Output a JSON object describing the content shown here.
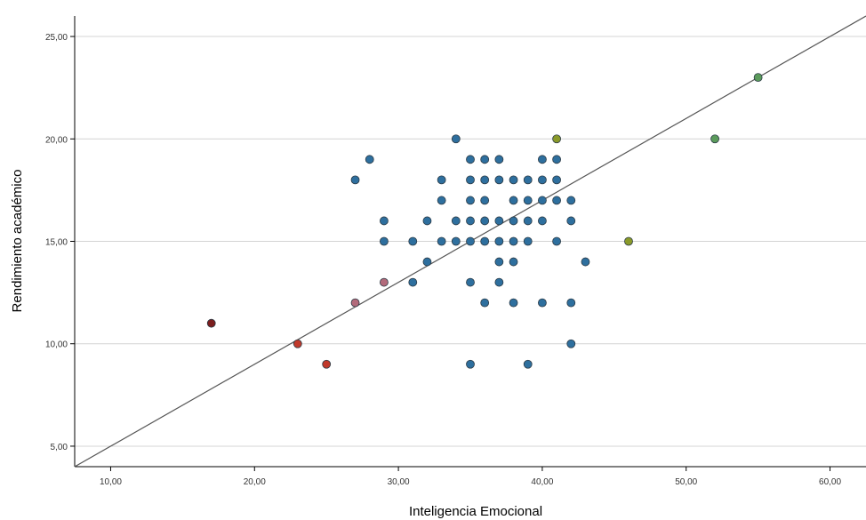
{
  "chart_data": {
    "type": "scatter",
    "title": "",
    "xlabel": "Inteligencia Emocional",
    "ylabel": "Rendimiento académico",
    "xlim": [
      7.5,
      62.5
    ],
    "ylim": [
      4,
      26
    ],
    "x_ticks": [
      10,
      20,
      30,
      40,
      50,
      60
    ],
    "x_tick_labels": [
      "10,00",
      "20,00",
      "30,00",
      "40,00",
      "50,00",
      "60,00"
    ],
    "y_ticks": [
      5,
      10,
      15,
      20,
      25
    ],
    "y_tick_labels": [
      "5,00",
      "10,00",
      "15,00",
      "20,00",
      "25,00"
    ],
    "grid": "horizontal",
    "reference_line": {
      "type": "identity",
      "label": "",
      "from": [
        7.5,
        4
      ],
      "to": [
        62.5,
        26
      ]
    },
    "colors": {
      "default": "#2e6f9e",
      "red": "#c0392b",
      "dark_red": "#7b1e1e",
      "pink": "#b26a7a",
      "green": "#5b9b5b",
      "olive": "#8a9a2a"
    },
    "points": [
      {
        "x": 17,
        "y": 11,
        "color": "dark_red"
      },
      {
        "x": 23,
        "y": 10,
        "color": "red"
      },
      {
        "x": 25,
        "y": 9,
        "color": "red"
      },
      {
        "x": 27,
        "y": 12,
        "color": "pink"
      },
      {
        "x": 29,
        "y": 13,
        "color": "pink"
      },
      {
        "x": 27,
        "y": 18
      },
      {
        "x": 28,
        "y": 19
      },
      {
        "x": 29,
        "y": 16
      },
      {
        "x": 29,
        "y": 15
      },
      {
        "x": 31,
        "y": 15
      },
      {
        "x": 31,
        "y": 13
      },
      {
        "x": 32,
        "y": 16
      },
      {
        "x": 32,
        "y": 14
      },
      {
        "x": 33,
        "y": 18
      },
      {
        "x": 33,
        "y": 17
      },
      {
        "x": 33,
        "y": 15
      },
      {
        "x": 34,
        "y": 20
      },
      {
        "x": 34,
        "y": 16
      },
      {
        "x": 34,
        "y": 15
      },
      {
        "x": 35,
        "y": 19
      },
      {
        "x": 35,
        "y": 18
      },
      {
        "x": 35,
        "y": 17
      },
      {
        "x": 35,
        "y": 16
      },
      {
        "x": 35,
        "y": 15
      },
      {
        "x": 35,
        "y": 13
      },
      {
        "x": 35,
        "y": 9
      },
      {
        "x": 36,
        "y": 19
      },
      {
        "x": 36,
        "y": 18
      },
      {
        "x": 36,
        "y": 17
      },
      {
        "x": 36,
        "y": 16
      },
      {
        "x": 36,
        "y": 15
      },
      {
        "x": 36,
        "y": 12
      },
      {
        "x": 37,
        "y": 19
      },
      {
        "x": 37,
        "y": 18
      },
      {
        "x": 37,
        "y": 16
      },
      {
        "x": 37,
        "y": 15
      },
      {
        "x": 37,
        "y": 14
      },
      {
        "x": 37,
        "y": 13
      },
      {
        "x": 38,
        "y": 18
      },
      {
        "x": 38,
        "y": 17
      },
      {
        "x": 38,
        "y": 16
      },
      {
        "x": 38,
        "y": 15
      },
      {
        "x": 38,
        "y": 14
      },
      {
        "x": 38,
        "y": 12
      },
      {
        "x": 39,
        "y": 18
      },
      {
        "x": 39,
        "y": 17
      },
      {
        "x": 39,
        "y": 16
      },
      {
        "x": 39,
        "y": 15
      },
      {
        "x": 39,
        "y": 9
      },
      {
        "x": 40,
        "y": 19
      },
      {
        "x": 40,
        "y": 18
      },
      {
        "x": 40,
        "y": 17
      },
      {
        "x": 40,
        "y": 16
      },
      {
        "x": 40,
        "y": 12
      },
      {
        "x": 41,
        "y": 20,
        "color": "olive"
      },
      {
        "x": 41,
        "y": 19
      },
      {
        "x": 41,
        "y": 18
      },
      {
        "x": 41,
        "y": 17
      },
      {
        "x": 41,
        "y": 15
      },
      {
        "x": 42,
        "y": 17
      },
      {
        "x": 42,
        "y": 16
      },
      {
        "x": 42,
        "y": 12
      },
      {
        "x": 42,
        "y": 10
      },
      {
        "x": 43,
        "y": 14
      },
      {
        "x": 46,
        "y": 15,
        "color": "olive"
      },
      {
        "x": 52,
        "y": 20,
        "color": "green"
      },
      {
        "x": 55,
        "y": 23,
        "color": "green"
      }
    ]
  }
}
